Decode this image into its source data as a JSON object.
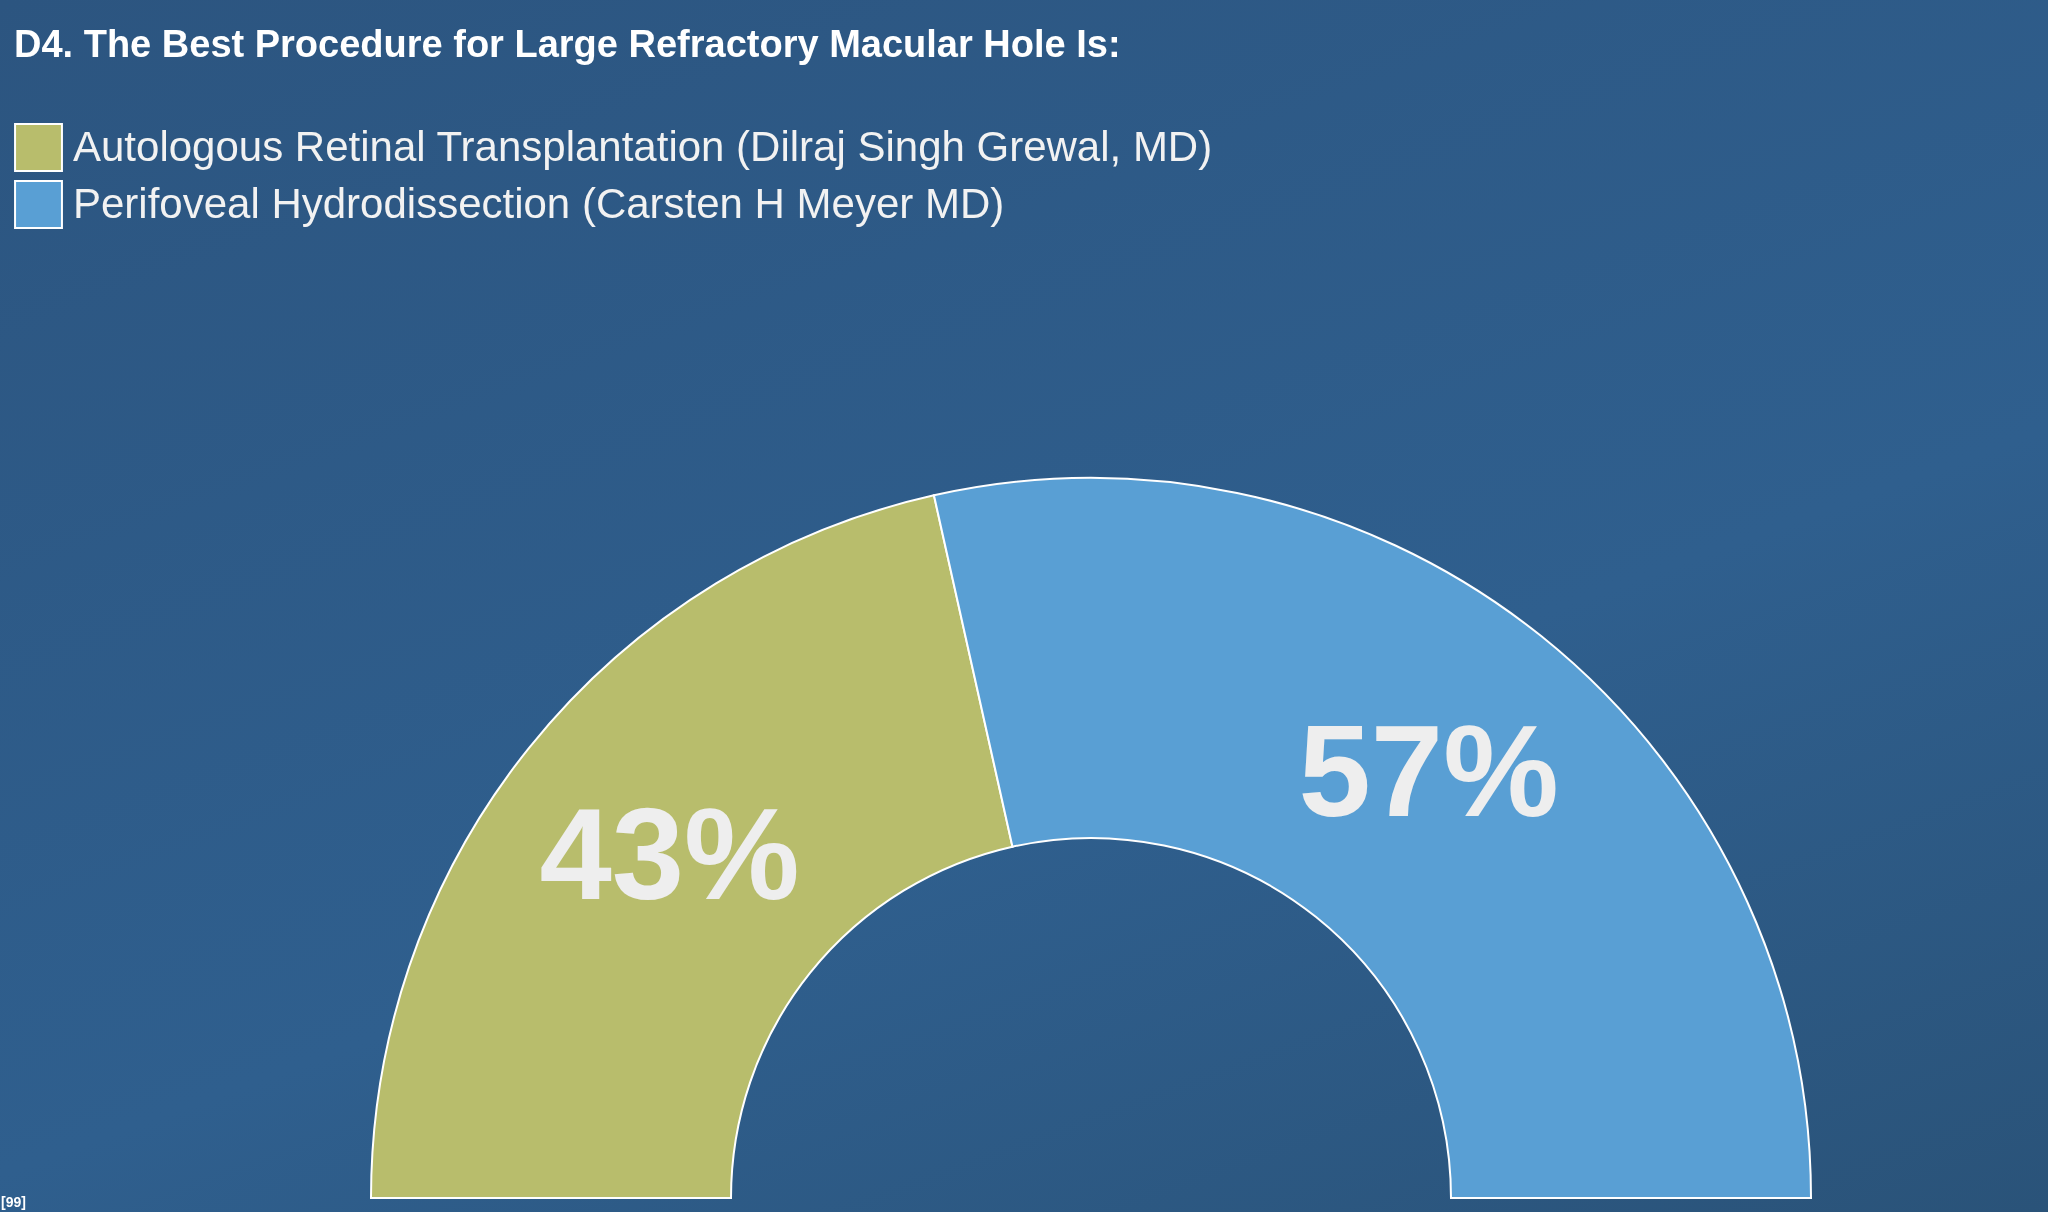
{
  "chart_data": {
    "type": "donut",
    "title": "D4. The Best Procedure for Large Refractory Macular Hole Is:",
    "categories": [
      "Autologous Retinal Transplantation (Dilraj Singh Grewal, MD)",
      "Perifoveal Hydrodissection (Carsten H Meyer MD)"
    ],
    "values": [
      43,
      57
    ],
    "colors": [
      "#b8bd6c",
      "#599fd4"
    ],
    "value_labels": [
      "43%",
      "57%"
    ],
    "legend": "top left",
    "annotations": [
      "[99]"
    ]
  }
}
